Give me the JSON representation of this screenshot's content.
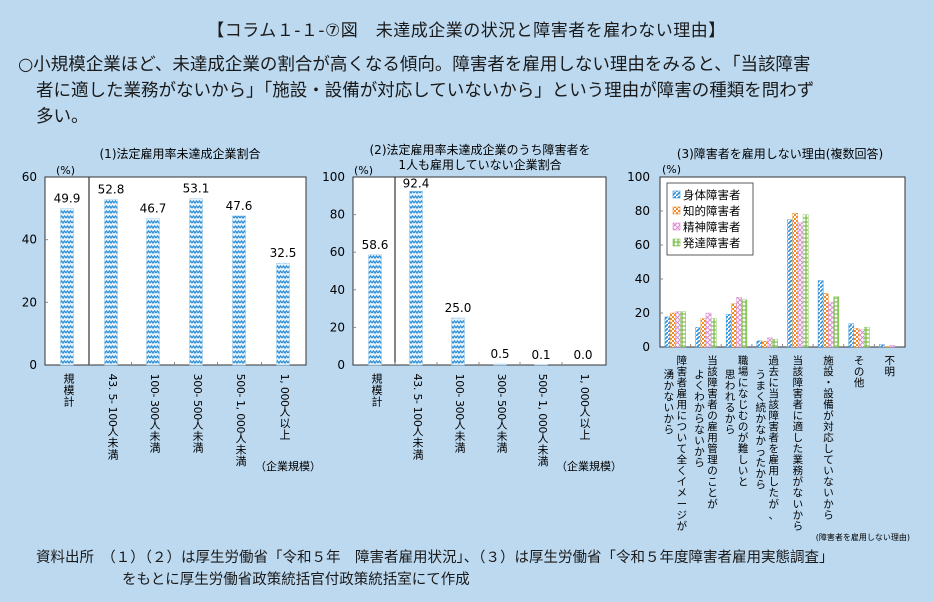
{
  "header": {
    "title": "【コラム１-１-⑦図　未達成企業の状況と障害者を雇わない理由】",
    "lead_line1": "○小規模企業ほど、未達成企業の割合が高くなる傾向。障害者を雇用しない理由をみると、「当該障害",
    "lead_line2": "者に適した業務がないから」「施設・設備が対応していないから」という理由が障害の種類を問わず",
    "lead_line3": "多い。"
  },
  "source": {
    "line1": "資料出所　（１）（２）は厚生労働省「令和５年　障害者雇用状況」、（３）は厚生労働省「令和５年度障害者雇用実態調査」",
    "line2": "をもとに厚生労働省政策統括官付政策統括室にて作成"
  },
  "colors": {
    "background": "#bcd9f0",
    "plot_bg": "#ffffff",
    "bar_blue": "#2e8fd6",
    "series": [
      "#2e8fd6",
      "#f08a24",
      "#d98ad0",
      "#7cbf4a"
    ]
  },
  "chart_data": [
    {
      "type": "bar",
      "title": "(1)法定雇用率未達成企業割合",
      "ylabel": "(%)",
      "xlabel": "（企業規模）",
      "ylim": [
        0,
        60
      ],
      "yticks": [
        0,
        20,
        40,
        60
      ],
      "categories": [
        "規模計",
        "43.5-100人未満",
        "100-300人未満",
        "300-500人未満",
        "500-1,000人未満",
        "1,000人以上"
      ],
      "values": [
        49.9,
        52.8,
        46.7,
        53.1,
        47.6,
        32.5
      ],
      "value_labels": [
        "49.9",
        "52.8",
        "46.7",
        "53.1",
        "47.6",
        "32.5"
      ],
      "grid": false
    },
    {
      "type": "bar",
      "title_line1": "(2)法定雇用率未達成企業のうち障害者を",
      "title_line2": "1人も雇用していない企業割合",
      "ylabel": "(%)",
      "xlabel": "（企業規模）",
      "ylim": [
        0,
        100
      ],
      "yticks": [
        0,
        20,
        40,
        60,
        80,
        100
      ],
      "categories": [
        "規模計",
        "43.5-100人未満",
        "100-300人未満",
        "300-500人未満",
        "500-1,000人未満",
        "1,000人以上"
      ],
      "values": [
        58.6,
        92.4,
        25.0,
        0.5,
        0.1,
        0.0
      ],
      "value_labels": [
        "58.6",
        "92.4",
        "25.0",
        "0.5",
        "0.1",
        "0.0"
      ],
      "grid": false
    },
    {
      "type": "bar",
      "title": "(3)障害者を雇用しない理由(複数回答)",
      "ylabel": "(%)",
      "xlabel": "(障害者を雇用しない理由)",
      "ylim": [
        0,
        100
      ],
      "yticks": [
        0,
        20,
        40,
        60,
        80,
        100
      ],
      "legend_position": "top-left",
      "categories": [
        [
          "障害者雇用について全くイメージが",
          "湧かないから"
        ],
        [
          "当該障害者の雇用管理のことが",
          "よくわからないから"
        ],
        [
          "職場になじむのが難しいと",
          "思われるから"
        ],
        [
          "過去に当該障害者を雇用したが、",
          "うまく続かなかったから"
        ],
        [
          "当該障害者に適した業務がないから"
        ],
        [
          "施設・設備が対応していないから"
        ],
        [
          "その他"
        ],
        [
          "不明"
        ]
      ],
      "series": [
        {
          "name": "身体障害者",
          "values": [
            17.7,
            11.5,
            19.2,
            3.6,
            74.9,
            39.1,
            13.7,
            1.4
          ]
        },
        {
          "name": "知的障害者",
          "values": [
            20.0,
            16.7,
            25.4,
            3.4,
            78.7,
            31.5,
            10.9,
            0.3
          ]
        },
        {
          "name": "精神障害者",
          "values": [
            20.8,
            20.0,
            29.3,
            5.4,
            73.2,
            26.2,
            10.1,
            0.9
          ]
        },
        {
          "name": "発達障害者",
          "values": [
            20.8,
            16.7,
            27.8,
            4.6,
            77.8,
            29.6,
            11.7,
            0.0
          ]
        }
      ],
      "grid": false
    }
  ]
}
